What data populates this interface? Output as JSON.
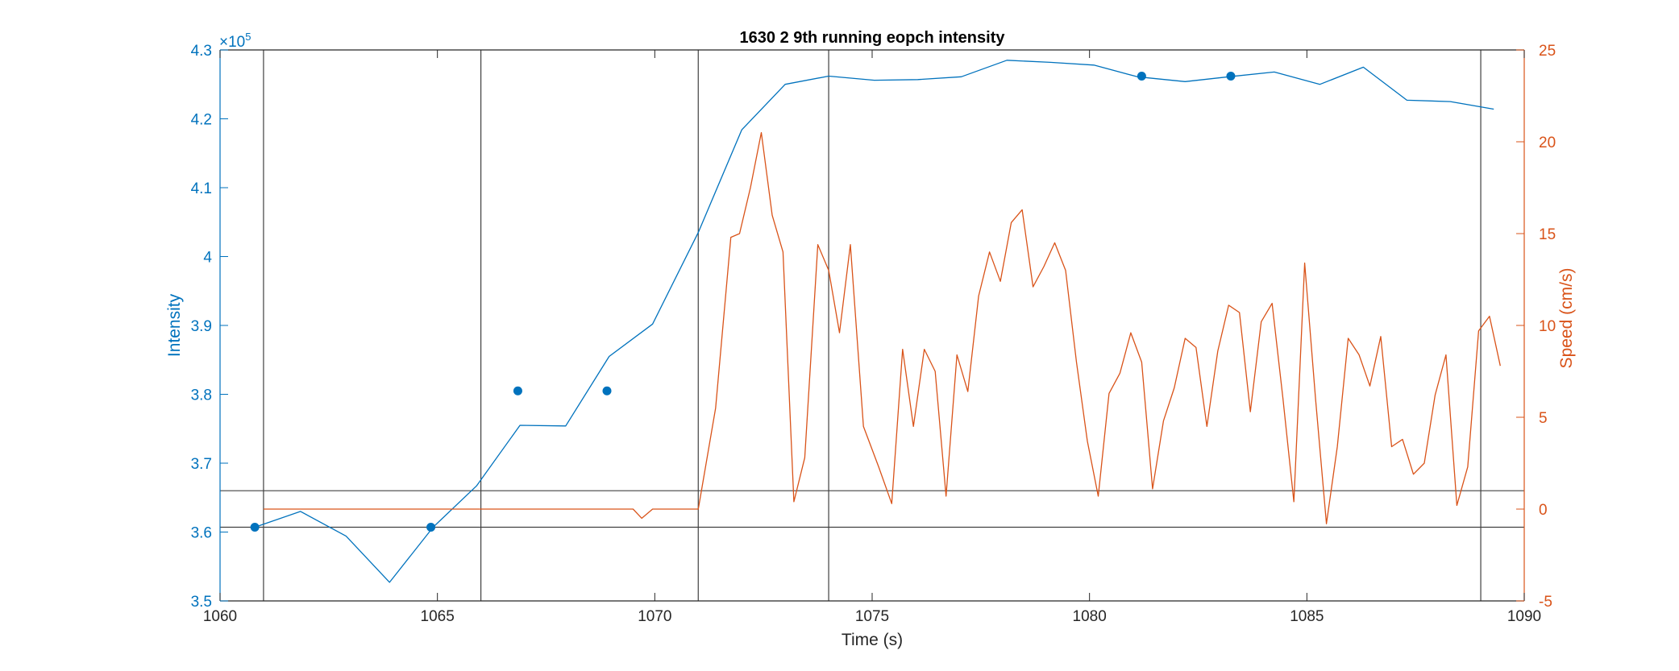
{
  "chart_data": {
    "type": "line",
    "title": "1630 2 9th running eopch intensity",
    "xlabel": "Time (s)",
    "ylabel_left": "Intensity",
    "ylabel_right": "Speed (cm/s)",
    "exponent_label": "×10",
    "exponent_power": "5",
    "xlim": [
      1060,
      1090
    ],
    "ylim_left": [
      3.5,
      4.3
    ],
    "ylim_right": [
      -5,
      25
    ],
    "xticks": [
      "1060",
      "1065",
      "1070",
      "1075",
      "1080",
      "1085",
      "1090"
    ],
    "yticks_left": [
      "3.5",
      "3.6",
      "3.7",
      "3.8",
      "3.9",
      "4",
      "4.1",
      "4.2",
      "4.3"
    ],
    "yticks_right": [
      "-5",
      "0",
      "5",
      "10",
      "15",
      "20",
      "25"
    ],
    "colors": {
      "intensity": "#0072BD",
      "speed": "#D95319",
      "reference": "#404040"
    },
    "vertical_lines_x": [
      1061,
      1066,
      1071,
      1074,
      1089
    ],
    "horizontal_lines_left_y": [
      3.607,
      3.66
    ],
    "series": [
      {
        "name": "Intensity",
        "axis": "left",
        "x": [
          1060.8,
          1061.85,
          1062.9,
          1063.9,
          1064.9,
          1065.9,
          1066.9,
          1067.95,
          1068.95,
          1069.95,
          1071.0,
          1072.0,
          1073.0,
          1074.0,
          1075.05,
          1076.05,
          1077.05,
          1078.1,
          1079.1,
          1080.1,
          1081.1,
          1082.2,
          1083.2,
          1084.25,
          1085.3,
          1086.3,
          1087.3,
          1088.3,
          1089.3
        ],
        "values": [
          3.607,
          3.63,
          3.594,
          3.527,
          3.607,
          3.667,
          3.755,
          3.754,
          3.855,
          3.902,
          4.035,
          4.184,
          4.25,
          4.262,
          4.256,
          4.257,
          4.261,
          4.285,
          4.282,
          4.278,
          4.261,
          4.254,
          4.261,
          4.268,
          4.25,
          4.275,
          4.227,
          4.225,
          4.214
        ]
      },
      {
        "name": "Speed",
        "axis": "right",
        "x": [
          1061.0,
          1062.0,
          1063.0,
          1064.0,
          1065.0,
          1066.0,
          1067.0,
          1068.0,
          1069.0,
          1069.5,
          1069.7,
          1069.95,
          1070.5,
          1071.0,
          1071.4,
          1071.75,
          1071.95,
          1072.2,
          1072.45,
          1072.7,
          1072.95,
          1073.2,
          1073.45,
          1073.75,
          1074.0,
          1074.25,
          1074.5,
          1074.8,
          1075.15,
          1075.45,
          1075.7,
          1075.95,
          1076.2,
          1076.45,
          1076.7,
          1076.95,
          1077.2,
          1077.45,
          1077.7,
          1077.95,
          1078.2,
          1078.45,
          1078.7,
          1078.95,
          1079.2,
          1079.45,
          1079.7,
          1079.95,
          1080.2,
          1080.45,
          1080.7,
          1080.95,
          1081.2,
          1081.45,
          1081.7,
          1081.95,
          1082.2,
          1082.45,
          1082.7,
          1082.95,
          1083.2,
          1083.45,
          1083.7,
          1083.95,
          1084.2,
          1084.45,
          1084.7,
          1084.95,
          1085.2,
          1085.45,
          1085.7,
          1085.95,
          1086.2,
          1086.45,
          1086.7,
          1086.95,
          1087.2,
          1087.45,
          1087.7,
          1087.95,
          1088.2,
          1088.45,
          1088.7,
          1088.95,
          1089.2,
          1089.45
        ],
        "values": [
          0.0,
          0.0,
          0.0,
          0.0,
          0.0,
          0.0,
          0.0,
          0.0,
          0.0,
          0.0,
          -0.5,
          0.0,
          0.0,
          0.0,
          5.5,
          14.8,
          15.0,
          17.5,
          20.5,
          16.0,
          14.0,
          0.4,
          2.8,
          14.4,
          13.0,
          9.6,
          14.4,
          4.5,
          2.3,
          0.3,
          8.7,
          4.5,
          8.7,
          7.5,
          0.7,
          8.4,
          6.4,
          11.6,
          14.0,
          12.4,
          15.6,
          16.3,
          12.1,
          13.2,
          14.5,
          13.0,
          8.0,
          3.7,
          0.7,
          6.3,
          7.4,
          9.6,
          8.0,
          1.1,
          4.8,
          6.6,
          9.3,
          8.8,
          4.5,
          8.6,
          11.1,
          10.7,
          5.3,
          10.2,
          11.2,
          6.0,
          0.4,
          13.4,
          6.0,
          -0.8,
          3.4,
          9.3,
          8.4,
          6.7,
          9.4,
          3.4,
          3.8,
          1.9,
          2.5,
          6.2,
          8.4,
          0.2,
          2.3,
          9.7,
          10.5,
          7.8
        ]
      },
      {
        "name": "Markers",
        "axis": "left",
        "x": [
          1060.8,
          1064.85,
          1066.85,
          1068.9,
          1081.2,
          1083.25
        ],
        "values": [
          3.607,
          3.607,
          3.805,
          3.805,
          4.262,
          4.262
        ]
      }
    ]
  }
}
